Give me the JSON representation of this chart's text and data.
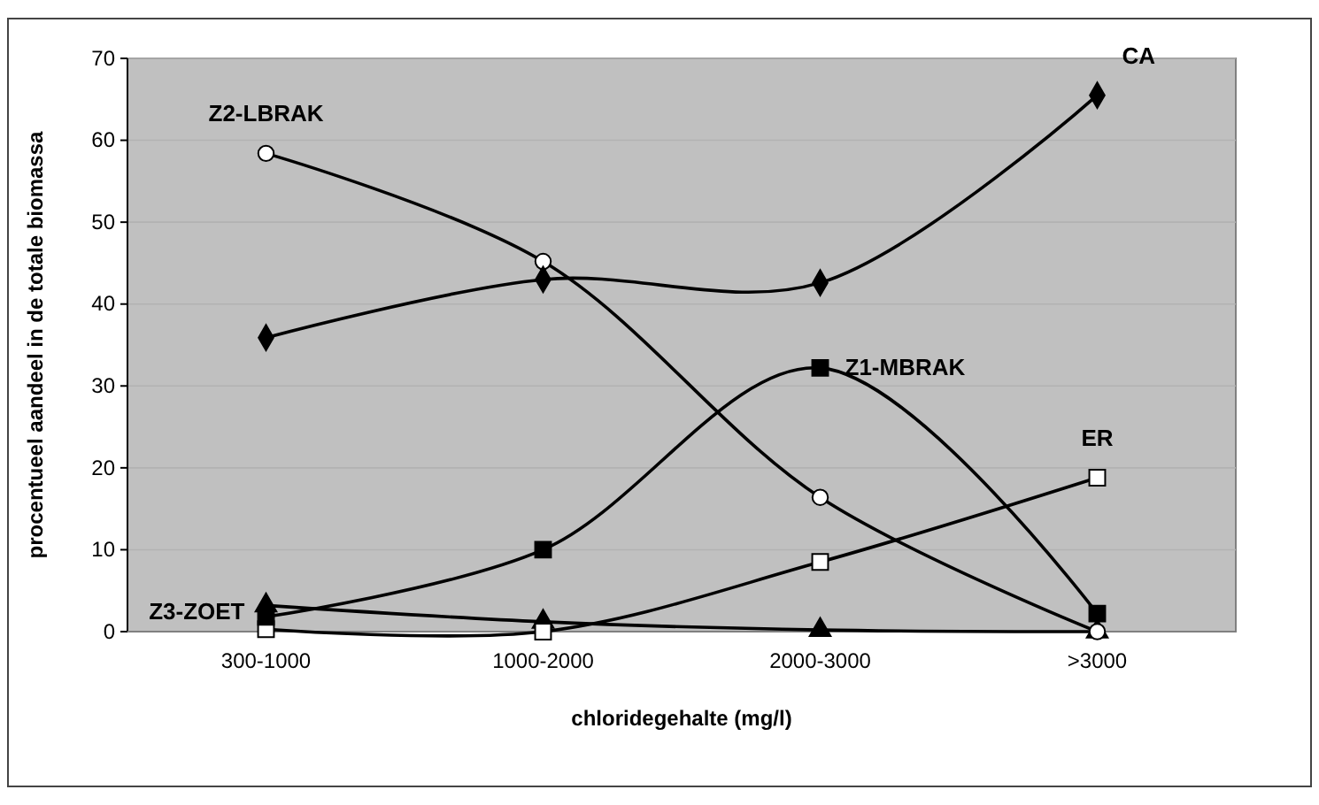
{
  "chart_data": {
    "type": "line",
    "xlabel": "chloridegehalte (mg/l)",
    "ylabel": "procentueel aandeel in de totale biomassa",
    "categories": [
      "300-1000",
      "1000-2000",
      "2000-3000",
      ">3000"
    ],
    "ylim": [
      0,
      70
    ],
    "yticks": [
      0,
      10,
      20,
      30,
      40,
      50,
      60,
      70
    ],
    "grid": "y",
    "series": [
      {
        "name": "CA",
        "color": "#000000",
        "marker": "diamond",
        "colors": [
          "#000000",
          "#000000",
          "#000000",
          "#000000"
        ],
        "values": [
          35.9,
          43.0,
          42.6,
          65.5
        ]
      },
      {
        "name": "Z2-LBRAK",
        "color": "#000000",
        "marker": "circle",
        "colors": [
          "#ffffff",
          "#ffffff",
          "#ffffff",
          "#ffffff"
        ],
        "values": [
          58.4,
          45.2,
          16.4,
          0
        ]
      },
      {
        "name": "Z1-MBRAK",
        "color": "#000000",
        "marker": "square",
        "colors": [
          "#000000",
          "#000000",
          "#000000",
          "#000000"
        ],
        "values": [
          1.8,
          10.0,
          32.2,
          2.2
        ]
      },
      {
        "name": "ER",
        "color": "#000000",
        "marker": "square",
        "colors": [
          "#ffffff",
          "#ffffff",
          "#ffffff",
          "#ffffff"
        ],
        "values": [
          0.3,
          0,
          8.5,
          18.8
        ]
      },
      {
        "name": "Z3-ZOET",
        "color": "#000000",
        "marker": "triangle",
        "colors": [
          "#000000",
          "#000000",
          "#000000",
          "#000000"
        ],
        "values": [
          3.2,
          1.2,
          0.2,
          0
        ]
      }
    ]
  }
}
